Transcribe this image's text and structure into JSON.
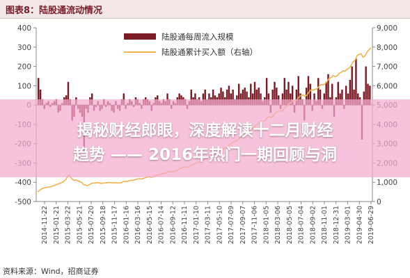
{
  "figure": {
    "title": "图表8：陆股通流动情况",
    "source": "资料来源：Wind，招商证券"
  },
  "overlay": {
    "line1": "揭秘财经郎眼，深度解读十二月财经",
    "line2": "趋势 —— 2016年热门一期回顾与洞"
  },
  "chart_data": {
    "type": "bar",
    "series": [
      {
        "name": "陆股通每周流入规模",
        "type": "bar",
        "axis": "left",
        "color": "#7b1a24"
      },
      {
        "name": "陆股通累计买入额（右轴）",
        "type": "line",
        "axis": "right",
        "color": "#f0b24c"
      }
    ],
    "x_ticks": [
      "2014-11-22",
      "2015-01-21",
      "2015-03-22",
      "2015-05-21",
      "2015-07-20",
      "2015-09-18",
      "2015-11-17",
      "2016-01-16",
      "2016-03-16",
      "2016-05-15",
      "2016-07-14",
      "2016-09-12",
      "2016-11-11",
      "2017-01-10",
      "2017-03-11",
      "2017-05-10",
      "2017-07-09",
      "2017-09-07",
      "2017-11-06",
      "2018-01-05",
      "2018-03-06",
      "2018-05-05",
      "2018-07-04",
      "2018-09-02",
      "2018-11-01",
      "2018-12-31",
      "2019-03-01",
      "2019-04-30",
      "2019-06-29"
    ],
    "y_left": {
      "min": -500,
      "max": 400,
      "ticks": [
        -500,
        -400,
        -300,
        -200,
        -100,
        0,
        100,
        200,
        300,
        400
      ]
    },
    "y_right": {
      "min": 0,
      "max": 9000,
      "ticks": [
        0,
        1000,
        2000,
        3000,
        4000,
        5000,
        6000,
        7000,
        8000,
        9000
      ],
      "labels": [
        "0",
        "1,000",
        "2,000",
        "3,000",
        "4,000",
        "5,000",
        "6,000",
        "7,000",
        "8,000",
        "9,000"
      ]
    },
    "weekly_flow": [
      140,
      80,
      30,
      -20,
      10,
      20,
      -10,
      10,
      20,
      30,
      -40,
      -30,
      10,
      40,
      50,
      120,
      30,
      -80,
      -60,
      40,
      -20,
      -40,
      -60,
      -240,
      -20,
      -40,
      40,
      60,
      -30,
      -10,
      20,
      -30,
      -20,
      30,
      -10,
      20,
      10,
      -30,
      -40,
      20,
      -20,
      -30,
      30,
      60,
      -20,
      10,
      30,
      20,
      -10,
      40,
      30,
      10,
      -20,
      30,
      40,
      30,
      20,
      -30,
      10,
      40,
      50,
      20,
      10,
      30,
      20,
      60,
      30,
      -20,
      20,
      10,
      40,
      60,
      50,
      40,
      30,
      -20,
      20,
      80,
      40,
      60,
      30,
      40,
      20,
      60,
      80,
      30,
      60,
      40,
      80,
      50,
      40,
      60,
      90,
      70,
      40,
      80,
      100,
      60,
      80,
      30,
      50,
      110,
      60,
      80,
      90,
      70,
      40,
      110,
      60,
      120,
      80,
      90,
      60,
      20,
      40,
      140,
      60,
      -40,
      80,
      120,
      90,
      50,
      -20,
      60,
      140,
      80,
      120,
      60,
      100,
      -40,
      80,
      150,
      60,
      30,
      -80,
      90,
      150,
      110,
      -30,
      60,
      20,
      140,
      80,
      -20,
      60,
      120,
      160,
      40,
      110,
      -60,
      40,
      120,
      60,
      80,
      -20,
      100,
      60,
      130,
      200,
      80,
      240,
      60,
      40,
      -180,
      70,
      200,
      110,
      100
    ],
    "cumulative_buy": [
      500,
      580,
      660,
      700,
      720,
      740,
      760,
      780,
      820,
      860,
      900,
      940,
      980,
      1040,
      1120,
      1300,
      1380,
      1200,
      1100,
      1120,
      1080,
      1040,
      1000,
      880,
      860,
      820,
      880,
      940,
      960,
      960,
      980,
      960,
      940,
      960,
      960,
      980,
      990,
      980,
      960,
      980,
      970,
      960,
      980,
      1040,
      1040,
      1050,
      1080,
      1100,
      1100,
      1140,
      1170,
      1180,
      1170,
      1200,
      1240,
      1270,
      1290,
      1260,
      1280,
      1320,
      1370,
      1400,
      1420,
      1450,
      1470,
      1530,
      1560,
      1540,
      1560,
      1580,
      1620,
      1680,
      1730,
      1770,
      1800,
      1780,
      1800,
      1880,
      1920,
      1980,
      2010,
      2050,
      2070,
      2130,
      2210,
      2240,
      2300,
      2340,
      2420,
      2470,
      2510,
      2570,
      2660,
      2730,
      2770,
      2850,
      2950,
      3010,
      3090,
      3120,
      3170,
      3280,
      3340,
      3420,
      3510,
      3580,
      3620,
      3730,
      3790,
      3910,
      3990,
      4080,
      4140,
      4160,
      4200,
      4340,
      4400,
      4360,
      4440,
      4560,
      4650,
      4700,
      4680,
      4740,
      4880,
      4960,
      5080,
      5140,
      5240,
      5200,
      5280,
      5430,
      5490,
      5520,
      5440,
      5530,
      5680,
      5790,
      5760,
      5820,
      5840,
      5980,
      6060,
      6040,
      6100,
      6220,
      6380,
      6420,
      6530,
      6470,
      6510,
      6630,
      6690,
      6770,
      6750,
      6850,
      6910,
      7040,
      7240,
      7320,
      7560,
      7620,
      7660,
      7480,
      7550,
      7750,
      7860,
      7960
    ],
    "xlabel": "",
    "ylabel": "",
    "legend": "top-center",
    "grid": false
  }
}
